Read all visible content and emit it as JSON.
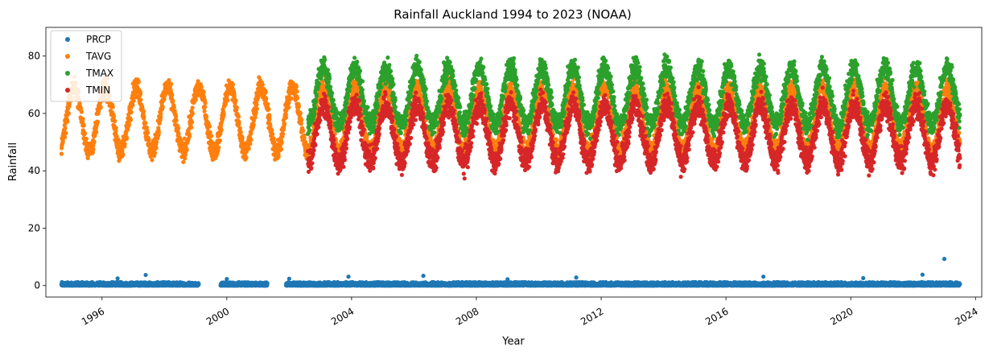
{
  "chart_data": {
    "type": "scatter",
    "title": "Rainfall Auckland 1994 to 2023 (NOAA)",
    "xlabel": "Year",
    "ylabel": "Rainfall",
    "xlim": [
      1994.2,
      2024.2
    ],
    "ylim": [
      -4,
      90
    ],
    "x_ticks": [
      1996,
      2000,
      2004,
      2008,
      2012,
      2016,
      2020,
      2024
    ],
    "x_tick_labels": [
      "1996",
      "2000",
      "2004",
      "2008",
      "2012",
      "2016",
      "2020",
      "2024"
    ],
    "y_ticks": [
      0,
      20,
      40,
      60,
      80
    ],
    "y_tick_labels": [
      "0",
      "20",
      "40",
      "60",
      "80"
    ],
    "grid": false,
    "legend_position": "top-left",
    "series": [
      {
        "name": "PRCP",
        "color": "#1f77b4",
        "description_of_shape": "daily values, mostly 0-2",
        "segments": [
          [
            1994.7,
            1999.1
          ],
          [
            1999.8,
            2001.3
          ],
          [
            2001.9,
            2023.5
          ]
        ],
        "range": [
          0,
          1.2
        ],
        "outliers": [
          {
            "x": 1997.4,
            "y": 3.7
          },
          {
            "x": 2003.9,
            "y": 3.1
          },
          {
            "x": 2006.3,
            "y": 3.4
          },
          {
            "x": 2011.2,
            "y": 2.8
          },
          {
            "x": 2017.2,
            "y": 3.1
          },
          {
            "x": 2020.4,
            "y": 2.6
          },
          {
            "x": 2022.3,
            "y": 3.8
          },
          {
            "x": 2023.0,
            "y": 9.3
          },
          {
            "x": 1996.5,
            "y": 2.5
          },
          {
            "x": 2000.0,
            "y": 2.3
          },
          {
            "x": 2002.0,
            "y": 2.4
          },
          {
            "x": 2009.0,
            "y": 2.2
          }
        ]
      },
      {
        "name": "TAVG",
        "color": "#ff7f0e",
        "segments": [
          [
            1994.7,
            2023.5
          ]
        ],
        "seasonal_mean": 58,
        "seasonal_amplitude": 11,
        "peak_phase": 0.1,
        "noise": 4
      },
      {
        "name": "TMAX",
        "color": "#2ca02c",
        "segments": [
          [
            2002.6,
            2023.5
          ]
        ],
        "seasonal_mean": 66,
        "seasonal_amplitude": 10,
        "peak_phase": 0.1,
        "noise": 4.5
      },
      {
        "name": "TMIN",
        "color": "#d62728",
        "segments": [
          [
            2002.6,
            2023.5
          ]
        ],
        "seasonal_mean": 53,
        "seasonal_amplitude": 10,
        "peak_phase": 0.1,
        "noise": 5
      }
    ]
  }
}
